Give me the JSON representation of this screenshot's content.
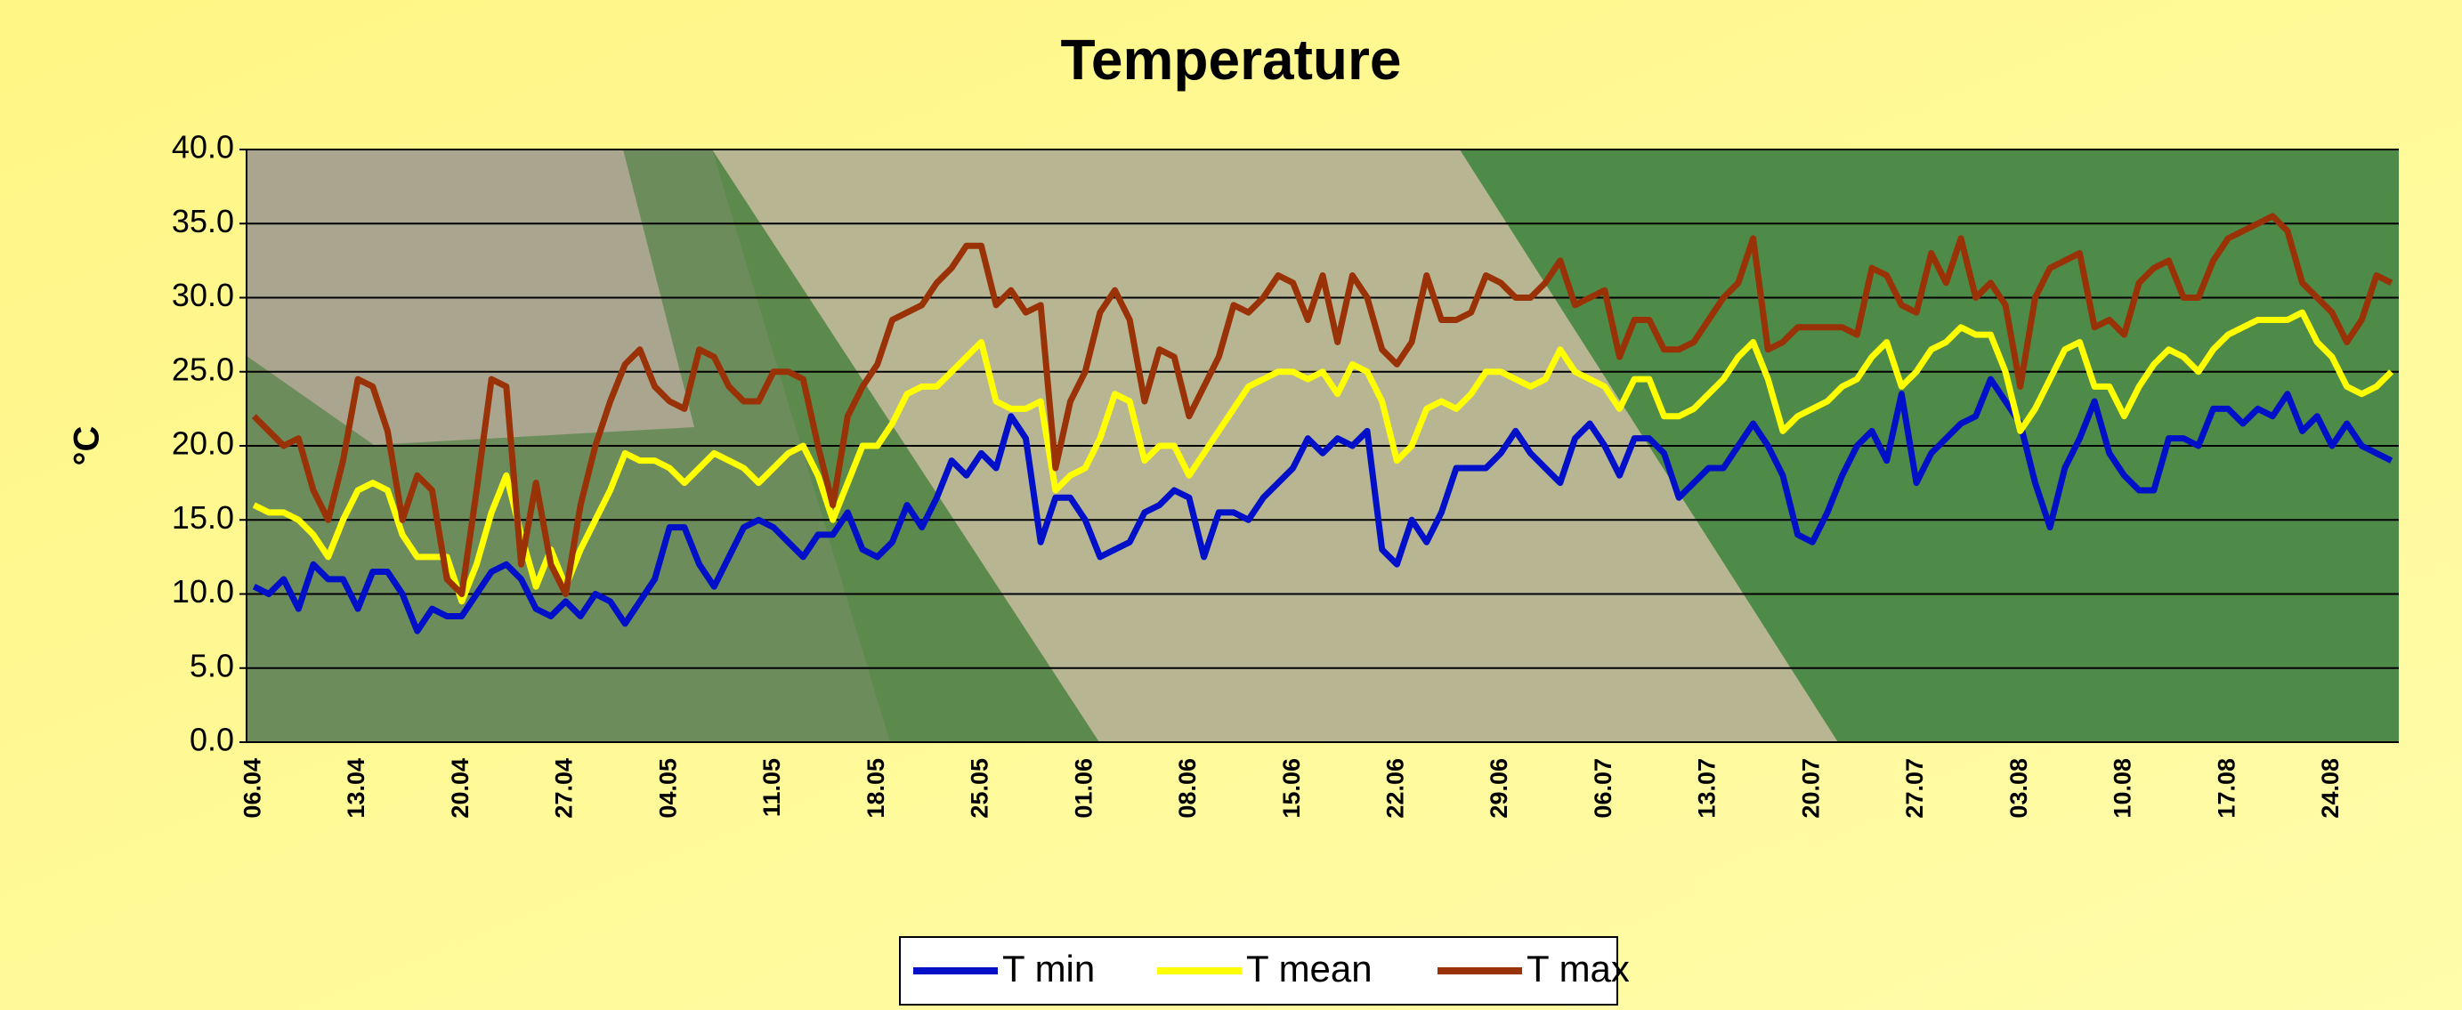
{
  "chart_data": {
    "type": "line",
    "title": "Temperature",
    "y_label": "°C",
    "categories": [
      "06.04",
      null,
      null,
      null,
      null,
      null,
      null,
      "13.04",
      null,
      null,
      null,
      null,
      null,
      null,
      "20.04",
      null,
      null,
      null,
      null,
      null,
      null,
      "27.04",
      null,
      null,
      null,
      null,
      null,
      null,
      "04.05",
      null,
      null,
      null,
      null,
      null,
      null,
      "11.05",
      null,
      null,
      null,
      null,
      null,
      null,
      "18.05",
      null,
      null,
      null,
      null,
      null,
      null,
      "25.05",
      null,
      null,
      null,
      null,
      null,
      null,
      "01.06",
      null,
      null,
      null,
      null,
      null,
      null,
      "08.06",
      null,
      null,
      null,
      null,
      null,
      null,
      "15.06",
      null,
      null,
      null,
      null,
      null,
      null,
      "22.06",
      null,
      null,
      null,
      null,
      null,
      null,
      "29.06",
      null,
      null,
      null,
      null,
      null,
      null,
      "06.07",
      null,
      null,
      null,
      null,
      null,
      null,
      "13.07",
      null,
      null,
      null,
      null,
      null,
      null,
      "20.07",
      null,
      null,
      null,
      null,
      null,
      null,
      "27.07",
      null,
      null,
      null,
      null,
      null,
      null,
      "03.08",
      null,
      null,
      null,
      null,
      null,
      null,
      "10.08",
      null,
      null,
      null,
      null,
      null,
      null,
      "17.08",
      null,
      null,
      null,
      null,
      null,
      null,
      "24.08",
      null,
      null,
      null,
      null
    ],
    "series": [
      {
        "name": "T min",
        "color": "#0010c8",
        "values": [
          10.5,
          10,
          11,
          9,
          12,
          11,
          11,
          9,
          11.5,
          11.5,
          10,
          7.5,
          9,
          8.5,
          8.5,
          10,
          11.5,
          12,
          11,
          9,
          8.5,
          9.5,
          8.5,
          10,
          9.5,
          8,
          9.5,
          11,
          14.5,
          14.5,
          12,
          10.5,
          12.5,
          14.5,
          15,
          14.5,
          13.5,
          12.5,
          14,
          14,
          15.5,
          13,
          12.5,
          13.5,
          16,
          14.5,
          16.5,
          19,
          18,
          19.5,
          18.5,
          22,
          20.5,
          13.5,
          16.5,
          16.5,
          15,
          12.5,
          13,
          13.5,
          15.5,
          16,
          17,
          16.5,
          12.5,
          15.5,
          15.5,
          15,
          16.5,
          17.5,
          18.5,
          20.5,
          19.5,
          20.5,
          20,
          21,
          13,
          12,
          15,
          13.5,
          15.5,
          18.5,
          18.5,
          18.5,
          19.5,
          21,
          19.5,
          18.5,
          17.5,
          20.5,
          21.5,
          20,
          18,
          20.5,
          20.5,
          19.5,
          16.5,
          17.5,
          18.5,
          18.5,
          20,
          21.5,
          20,
          18,
          14,
          13.5,
          15.5,
          18,
          20,
          21,
          19,
          23.5,
          17.5,
          19.5,
          20.5,
          21.5,
          22,
          24.5,
          23,
          21.5,
          17.5,
          14.5,
          18.5,
          20.5,
          23,
          19.5,
          18,
          17,
          17,
          20.5,
          20.5,
          20,
          22.5,
          22.5,
          21.5,
          22.5,
          22,
          23.5,
          21,
          22,
          20,
          21.5,
          20,
          19.5,
          19
        ]
      },
      {
        "name": "T mean",
        "color": "#ffff00",
        "values": [
          16,
          15.5,
          15.5,
          15,
          14,
          12.5,
          15,
          17,
          17.5,
          17,
          14,
          12.5,
          12.5,
          12.5,
          9.5,
          12,
          15.5,
          18,
          14,
          10.5,
          13,
          10.5,
          13,
          15,
          17,
          19.5,
          19,
          19,
          18.5,
          17.5,
          18.5,
          19.5,
          19,
          18.5,
          17.5,
          18.5,
          19.5,
          20,
          18,
          15,
          17.5,
          20,
          20,
          21.5,
          23.5,
          24,
          24,
          25,
          26,
          27,
          23,
          22.5,
          22.5,
          23,
          17,
          18,
          18.5,
          20.5,
          23.5,
          23,
          19,
          20,
          20,
          18,
          19.5,
          21,
          22.5,
          24,
          24.5,
          25,
          25,
          24.5,
          25,
          23.5,
          25.5,
          25,
          23,
          19,
          20,
          22.5,
          23,
          22.5,
          23.5,
          25,
          25,
          24.5,
          24,
          24.5,
          26.5,
          25,
          24.5,
          24,
          22.5,
          24.5,
          24.5,
          22,
          22,
          22.5,
          23.5,
          24.5,
          26,
          27,
          24.5,
          21,
          22,
          22.5,
          23,
          24,
          24.5,
          26,
          27,
          24,
          25,
          26.5,
          27,
          28,
          27.5,
          27.5,
          25,
          21,
          22.5,
          24.5,
          26.5,
          27,
          24,
          24,
          22,
          24,
          25.5,
          26.5,
          26,
          25,
          26.5,
          27.5,
          28,
          28.5,
          28.5,
          28.5,
          29,
          27,
          26,
          24,
          23.5,
          24,
          25
        ]
      },
      {
        "name": "T max",
        "color": "#9a3208",
        "values": [
          22,
          21,
          20,
          20.5,
          17,
          15,
          19,
          24.5,
          24,
          21,
          15,
          18,
          17,
          11,
          10,
          17,
          24.5,
          24,
          12,
          17.5,
          12,
          10,
          16,
          20,
          23,
          25.5,
          26.5,
          24,
          23,
          22.5,
          26.5,
          26,
          24,
          23,
          23,
          25,
          25,
          24.5,
          20,
          16,
          22,
          24,
          25.5,
          28.5,
          29,
          29.5,
          31,
          32,
          33.5,
          33.5,
          29.5,
          30.5,
          29,
          29.5,
          18.5,
          23,
          25,
          29,
          30.5,
          28.5,
          23,
          26.5,
          26,
          22,
          24,
          26,
          29.5,
          29,
          30,
          31.5,
          31,
          28.5,
          31.5,
          27,
          31.5,
          30,
          26.5,
          25.5,
          27,
          31.5,
          28.5,
          28.5,
          29,
          31.5,
          31,
          30,
          30,
          31,
          32.5,
          29.5,
          30,
          30.5,
          26,
          28.5,
          28.5,
          26.5,
          26.5,
          27,
          28.5,
          30,
          31,
          34,
          26.5,
          27,
          28,
          28,
          28,
          28,
          27.5,
          32,
          31.5,
          29.5,
          29,
          33,
          31,
          34,
          30,
          31,
          29.5,
          24,
          30,
          32,
          32.5,
          33,
          28,
          28.5,
          27.5,
          31,
          32,
          32.5,
          30,
          30,
          32.5,
          34,
          34.5,
          35,
          35.5,
          34.5,
          31,
          30,
          29,
          27,
          28.5,
          31.5,
          31
        ]
      }
    ],
    "ylim": [
      0,
      40
    ],
    "yticks": [
      {
        "value": 0,
        "label": "0.0"
      },
      {
        "value": 5,
        "label": "5.0"
      },
      {
        "value": 10,
        "label": "10.0"
      },
      {
        "value": 15,
        "label": "15.0"
      },
      {
        "value": 20,
        "label": "20.0"
      },
      {
        "value": 25,
        "label": "25.0"
      },
      {
        "value": 30,
        "label": "30.0"
      },
      {
        "value": 35,
        "label": "35.0"
      },
      {
        "value": 40,
        "label": "40.0"
      }
    ],
    "grid": true,
    "legend": "bottom"
  }
}
